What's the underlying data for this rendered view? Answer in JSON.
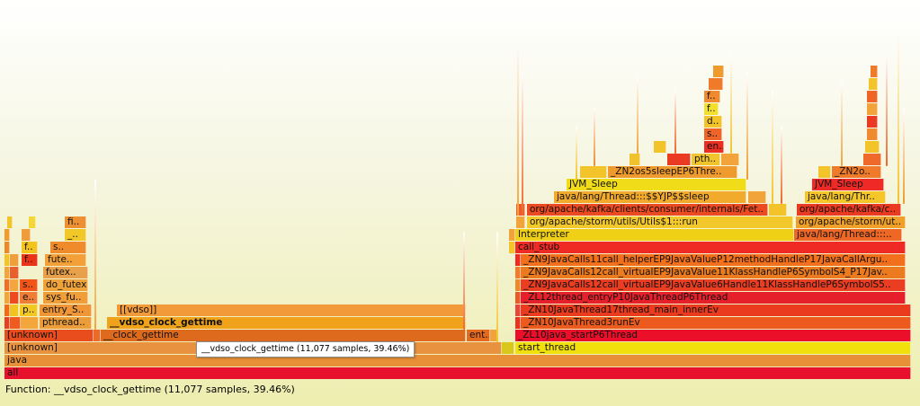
{
  "tooltip": {
    "text": "__vdso_clock_gettime (11,077 samples, 39.46%)"
  },
  "status": {
    "text": "Function: __vdso_clock_gettime (11,077 samples, 39.46%)"
  },
  "frames": [
    {
      "label": "all",
      "color": "#e8112d"
    },
    {
      "label": "java",
      "color": "#e89038"
    },
    {
      "label": "[unknown]",
      "color": "#e89240"
    },
    {
      "label": "start_thread",
      "color": "#f2e00c"
    },
    {
      "label": "[unknown]",
      "color": "#ea4d1d"
    },
    {
      "label": "__clock_gettime",
      "color": "#de6a1e"
    },
    {
      "label": "ent..",
      "color": "#e56a1f"
    },
    {
      "label": "_ZL10java_startP6Thread",
      "color": "#ec0f29"
    },
    {
      "label": "pthread..",
      "color": "#ec9c38"
    },
    {
      "label": "__vdso_clock_gettime",
      "color": "#efa21a"
    },
    {
      "label": "_ZN10JavaThread3runEv",
      "color": "#ed5a1e"
    },
    {
      "label": "p..",
      "color": "#f2c823"
    },
    {
      "label": "entry_S..",
      "color": "#f09637"
    },
    {
      "label": "[[vdso]]",
      "color": "#f29a3a"
    },
    {
      "label": "_ZN10JavaThread17thread_main_innerEv",
      "color": "#ea3b1e"
    },
    {
      "label": "e..",
      "color": "#ef7d34"
    },
    {
      "label": "sys_fu..",
      "color": "#f09e3a"
    },
    {
      "label": "_ZL12thread_entryP10JavaThreadP6Thread",
      "color": "#e6202a"
    },
    {
      "label": "s..",
      "color": "#f25518"
    },
    {
      "label": "do_futex",
      "color": "#f0a33b"
    },
    {
      "label": "_ZN9JavaCalls12call_virtualEP9JavaValue6Handle11KlassHandleP6SymbolS5..",
      "color": "#ea3d22"
    },
    {
      "label": "futex..",
      "color": "#e8a14a"
    },
    {
      "label": "_ZN9JavaCalls12call_virtualEP9JavaValue11KlassHandleP6SymbolS4_P17Jav..",
      "color": "#ec7a1e"
    },
    {
      "label": "f..",
      "color": "#ea3418"
    },
    {
      "label": "fute..",
      "color": "#f2a037"
    },
    {
      "label": "_ZN9JavaCalls11call_helperEP9JavaValueP12methodHandleP17JavaCallArgu..",
      "color": "#f26f1c"
    },
    {
      "label": "call_stub",
      "color": "#ef2a24"
    },
    {
      "label": "f..",
      "color": "#f4c41d"
    },
    {
      "label": "s..",
      "color": "#ef8b2b"
    },
    {
      "label": "Interpreter",
      "color": "#f0d016"
    },
    {
      "label": "java/lang/Thread:::..",
      "color": "#ef6725"
    },
    {
      "label": "_..",
      "color": "#f0c827"
    },
    {
      "label": "org/apache/storm/utils/Utils$1:::run",
      "color": "#f2c82a"
    },
    {
      "label": "org/apache/storm/ut..",
      "color": "#f0a028"
    },
    {
      "label": "fi..",
      "color": "#ec9031"
    },
    {
      "label": "org/apache/kafka/clients/consumer/internals/Fet..",
      "color": "#ec4a20"
    },
    {
      "label": "org/apache/kafka/c..",
      "color": "#ea3a22"
    },
    {
      "label": "java/lang/Thread:::$$YJP$$sleep",
      "color": "#f2aa2c"
    },
    {
      "label": "java/lang/Thr..",
      "color": "#f4c62a"
    },
    {
      "label": "JVM_Sleep",
      "color": "#f0dc18"
    },
    {
      "label": "JVM_Sleep",
      "color": "#ef2a26"
    },
    {
      "label": "_ZN2os5sleepEP6Thre..",
      "color": "#ef9a2c"
    },
    {
      "label": "_ZN2o..",
      "color": "#ef7a2a"
    },
    {
      "label": "pth..",
      "color": "#f2c42c"
    },
    {
      "label": "en..",
      "color": "#ea2e22"
    },
    {
      "label": "s..",
      "color": "#ef6528"
    },
    {
      "label": "d..",
      "color": "#f2c42a"
    },
    {
      "label": "f..",
      "color": "#f2e02a"
    },
    {
      "label": "f..",
      "color": "#ef8a2e"
    }
  ]
}
